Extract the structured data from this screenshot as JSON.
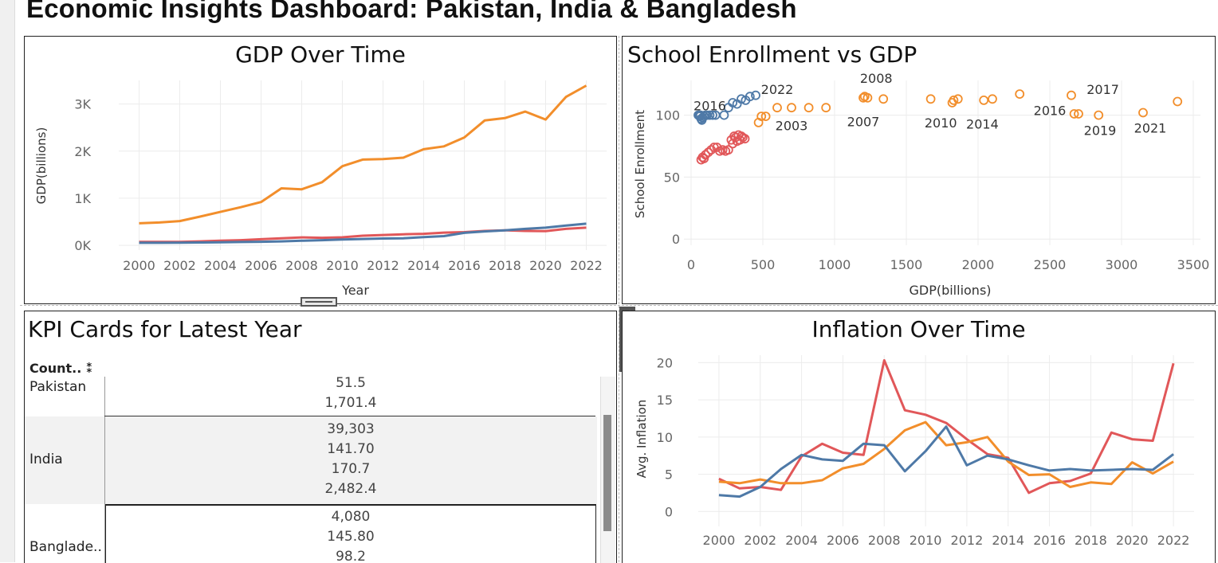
{
  "dashboard": {
    "title": "Economic Insights Dashboard: Pakistan, India & Bangladesh"
  },
  "colors": {
    "pakistan": "#e15759",
    "india": "#f28e2b",
    "bangladesh": "#4e79a7",
    "grid": "#ececec",
    "axis_text": "#666666"
  },
  "chart_data": [
    {
      "id": "gdp_over_time",
      "type": "line",
      "title": "GDP Over Time",
      "xlabel": "Year",
      "ylabel": "GDP(billions)",
      "x": [
        2000,
        2001,
        2002,
        2003,
        2004,
        2005,
        2006,
        2007,
        2008,
        2009,
        2010,
        2011,
        2012,
        2013,
        2014,
        2015,
        2016,
        2017,
        2018,
        2019,
        2020,
        2021,
        2022
      ],
      "xticks": [
        "2000",
        "2002",
        "2004",
        "2006",
        "2008",
        "2010",
        "2012",
        "2014",
        "2016",
        "2018",
        "2020",
        "2022"
      ],
      "yticks": [
        {
          "v": 0,
          "label": "0K"
        },
        {
          "v": 1000,
          "label": "1K"
        },
        {
          "v": 2000,
          "label": "2K"
        },
        {
          "v": 3000,
          "label": "3K"
        }
      ],
      "ylim": [
        -100,
        3500
      ],
      "xlim": [
        1999,
        2023
      ],
      "series": [
        {
          "color_key": "india",
          "values": [
            468,
            485,
            515,
            610,
            710,
            810,
            920,
            1210,
            1190,
            1340,
            1680,
            1820,
            1830,
            1860,
            2040,
            2100,
            2290,
            2650,
            2700,
            2840,
            2670,
            3150,
            3390
          ]
        },
        {
          "color_key": "pakistan",
          "values": [
            74,
            72,
            73,
            84,
            98,
            110,
            130,
            150,
            168,
            160,
            170,
            205,
            220,
            235,
            245,
            270,
            280,
            305,
            320,
            305,
            300,
            350,
            375
          ]
        },
        {
          "color_key": "bangladesh",
          "values": [
            53,
            54,
            55,
            60,
            66,
            70,
            75,
            85,
            98,
            110,
            125,
            135,
            145,
            150,
            175,
            195,
            265,
            295,
            320,
            350,
            375,
            420,
            460
          ]
        }
      ]
    },
    {
      "id": "school_enrollment_vs_gdp",
      "type": "scatter",
      "title": "School Enrollment vs GDP",
      "xlabel": "GDP(billions)",
      "ylabel": "School Enrollment",
      "xticks": [
        "0",
        "500",
        "1000",
        "1500",
        "2000",
        "2500",
        "3000",
        "3500"
      ],
      "xtick_values": [
        0,
        500,
        1000,
        1500,
        2000,
        2500,
        3000,
        3500
      ],
      "yticks": [
        {
          "v": 0,
          "label": "0"
        },
        {
          "v": 50,
          "label": "50"
        },
        {
          "v": 100,
          "label": "100"
        }
      ],
      "xlim": [
        -50,
        3550
      ],
      "ylim": [
        -5,
        128
      ],
      "series": [
        {
          "color_key": "bangladesh",
          "points": [
            [
              50,
              100
            ],
            [
              55,
              100
            ],
            [
              60,
              99
            ],
            [
              65,
              100
            ],
            [
              70,
              97
            ],
            [
              75,
              96
            ],
            [
              80,
              98
            ],
            [
              90,
              99
            ],
            [
              100,
              100
            ],
            [
              110,
              100
            ],
            [
              130,
              100
            ],
            [
              150,
              100
            ],
            [
              170,
              100
            ],
            [
              230,
              100
            ],
            [
              260,
              106
            ],
            [
              290,
              110
            ],
            [
              320,
              109
            ],
            [
              350,
              113
            ],
            [
              380,
              112
            ],
            [
              410,
              115
            ],
            [
              450,
              116
            ]
          ]
        },
        {
          "color_key": "pakistan",
          "points": [
            [
              70,
              64
            ],
            [
              80,
              66
            ],
            [
              90,
              65
            ],
            [
              100,
              68
            ],
            [
              120,
              70
            ],
            [
              140,
              72
            ],
            [
              160,
              74
            ],
            [
              180,
              74
            ],
            [
              200,
              71
            ],
            [
              220,
              72
            ],
            [
              240,
              71
            ],
            [
              260,
              72
            ],
            [
              280,
              80
            ],
            [
              290,
              77
            ],
            [
              300,
              83
            ],
            [
              310,
              82
            ],
            [
              320,
              79
            ],
            [
              330,
              84
            ],
            [
              340,
              80
            ],
            [
              350,
              83
            ],
            [
              360,
              82
            ],
            [
              375,
              81
            ]
          ]
        },
        {
          "color_key": "india",
          "points": [
            [
              470,
              94
            ],
            [
              490,
              99
            ],
            [
              520,
              99
            ],
            [
              600,
              106
            ],
            [
              700,
              106
            ],
            [
              820,
              106
            ],
            [
              940,
              106
            ],
            [
              1200,
              114
            ],
            [
              1210,
              115
            ],
            [
              1230,
              114
            ],
            [
              1340,
              113
            ],
            [
              1670,
              113
            ],
            [
              1820,
              110
            ],
            [
              1830,
              112
            ],
            [
              1860,
              113
            ],
            [
              2040,
              112
            ],
            [
              2100,
              113
            ],
            [
              2290,
              117
            ],
            [
              2650,
              116
            ],
            [
              2670,
              101
            ],
            [
              2700,
              101
            ],
            [
              2840,
              100
            ],
            [
              3150,
              102
            ],
            [
              3390,
              111
            ]
          ]
        }
      ],
      "annotations": [
        {
          "text": "2016",
          "x": 130,
          "y": 104
        },
        {
          "text": "2022",
          "x": 600,
          "y": 117
        },
        {
          "text": "2003",
          "x": 700,
          "y": 88
        },
        {
          "text": "2008",
          "x": 1290,
          "y": 126
        },
        {
          "text": "2007",
          "x": 1200,
          "y": 91
        },
        {
          "text": "2010",
          "x": 1740,
          "y": 90
        },
        {
          "text": "2014",
          "x": 2030,
          "y": 89
        },
        {
          "text": "2016",
          "x": 2500,
          "y": 100
        },
        {
          "text": "2017",
          "x": 2870,
          "y": 117
        },
        {
          "text": "2019",
          "x": 2850,
          "y": 84
        },
        {
          "text": "2021",
          "x": 3200,
          "y": 86
        }
      ]
    },
    {
      "id": "inflation_over_time",
      "type": "line",
      "title": "Inflation Over Time",
      "xlabel": "Year",
      "ylabel": "Avg. Inflation",
      "x": [
        2000,
        2001,
        2002,
        2003,
        2004,
        2005,
        2006,
        2007,
        2008,
        2009,
        2010,
        2011,
        2012,
        2013,
        2014,
        2015,
        2016,
        2017,
        2018,
        2019,
        2020,
        2021,
        2022
      ],
      "xticks": [
        "2000",
        "2002",
        "2004",
        "2006",
        "2008",
        "2010",
        "2012",
        "2014",
        "2016",
        "2018",
        "2020",
        "2022"
      ],
      "yticks": [
        {
          "v": 0,
          "label": "0"
        },
        {
          "v": 5,
          "label": "5"
        },
        {
          "v": 10,
          "label": "10"
        },
        {
          "v": 15,
          "label": "15"
        },
        {
          "v": 20,
          "label": "20"
        }
      ],
      "xlim": [
        1999,
        2023
      ],
      "ylim": [
        -2,
        21
      ],
      "series": [
        {
          "color_key": "pakistan",
          "values": [
            4.4,
            3.1,
            3.3,
            2.9,
            7.4,
            9.1,
            7.9,
            7.6,
            20.3,
            13.6,
            13.0,
            11.9,
            9.7,
            7.7,
            7.2,
            2.5,
            3.8,
            4.1,
            5.1,
            10.6,
            9.7,
            9.5,
            19.9
          ]
        },
        {
          "color_key": "india",
          "values": [
            4.0,
            3.8,
            4.3,
            3.8,
            3.8,
            4.2,
            5.8,
            6.4,
            8.4,
            10.9,
            12.0,
            8.9,
            9.3,
            10.0,
            6.7,
            4.9,
            5.0,
            3.3,
            3.9,
            3.7,
            6.6,
            5.1,
            6.7
          ]
        },
        {
          "color_key": "bangladesh",
          "values": [
            2.2,
            2.0,
            3.3,
            5.7,
            7.6,
            7.0,
            6.8,
            9.1,
            8.9,
            5.4,
            8.1,
            11.4,
            6.2,
            7.5,
            7.0,
            6.2,
            5.5,
            5.7,
            5.5,
            5.6,
            5.7,
            5.6,
            7.7
          ]
        }
      ]
    }
  ],
  "kpi": {
    "title": "KPI Cards for Latest Year",
    "header": "Count.. ⁑",
    "rows": [
      {
        "country": "Pakistan",
        "values": [
          "51.5",
          "1,701.4"
        ]
      },
      {
        "country": "India",
        "values": [
          "39,303",
          "141.70",
          "170.7",
          "2,482.4"
        ]
      },
      {
        "country": "Banglade..",
        "values": [
          "4,080",
          "145.80",
          "98.2"
        ]
      }
    ]
  },
  "toolbar": {
    "icons": [
      "close-icon",
      "pop-out-icon",
      "filter-icon",
      "more-options-icon"
    ],
    "glyphs": [
      "✕",
      "⇱",
      "▽",
      "▾"
    ]
  }
}
